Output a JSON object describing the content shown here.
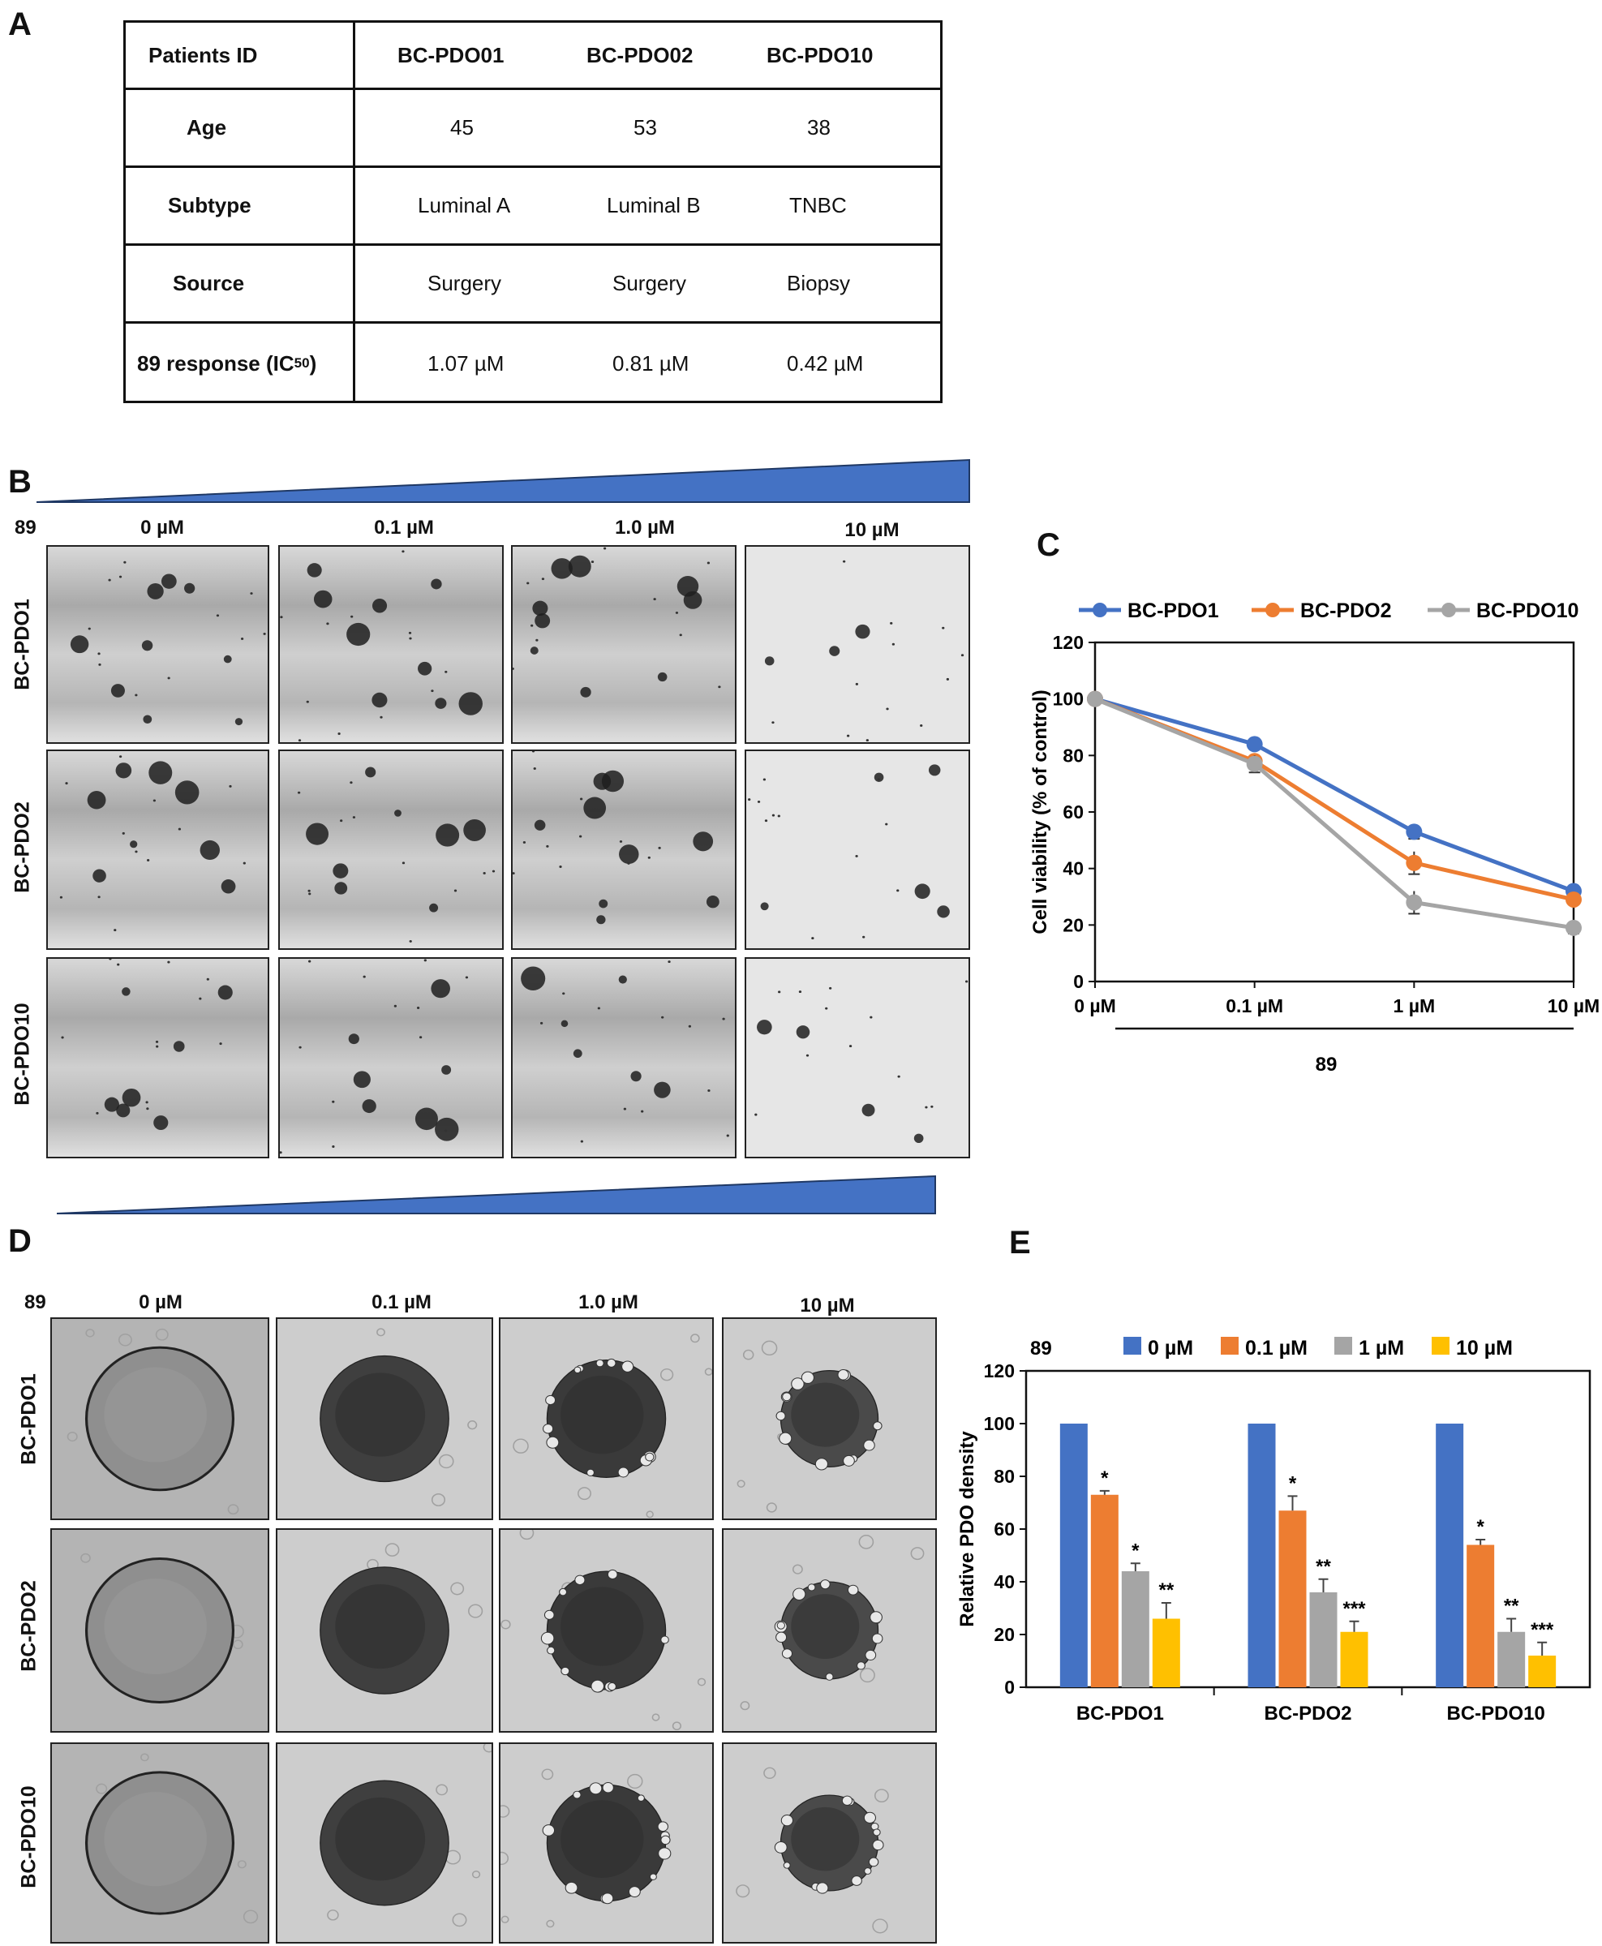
{
  "panels": {
    "a": "A",
    "b": "B",
    "c": "C",
    "d": "D",
    "e": "E"
  },
  "table": {
    "header": {
      "label": "Patients ID",
      "cols": [
        "BC-PDO01",
        "BC-PDO02",
        "BC-PDO10"
      ]
    },
    "rows": [
      {
        "label": "Age",
        "values": [
          "45",
          "53",
          "38"
        ]
      },
      {
        "label": "Subtype",
        "values": [
          "Luminal A",
          "Luminal B",
          "TNBC"
        ]
      },
      {
        "label": "Source",
        "values": [
          "Surgery",
          "Surgery",
          "Biopsy"
        ]
      },
      {
        "label_main": "89 response (IC",
        "label_sub": "50",
        "label_end": ")",
        "values": [
          "1.07 µM",
          "0.81 µM",
          "0.42 µM"
        ]
      }
    ]
  },
  "panel_b": {
    "compound": "89",
    "concentrations": [
      "0 µM",
      "0.1 µM",
      "1.0 µM",
      "10 µM"
    ],
    "rows": [
      "BC-PDO1",
      "BC-PDO2",
      "BC-PDO10"
    ]
  },
  "panel_d": {
    "compound": "89",
    "concentrations": [
      "0 µM",
      "0.1 µM",
      "1.0 µM",
      "10 µM"
    ],
    "rows": [
      "BC-PDO1",
      "BC-PDO2",
      "BC-PDO10"
    ]
  },
  "colors": {
    "blue": "#4472C4",
    "orange": "#ED7D31",
    "gray": "#A5A5A5",
    "yellow": "#FFC000",
    "wedge": "#4472C4"
  },
  "chart_data": [
    {
      "type": "line",
      "panel": "C",
      "categories": [
        "0 µM",
        "0.1 µM",
        "1 µM",
        "10 µM"
      ],
      "series": [
        {
          "name": "BC-PDO1",
          "values": [
            100,
            84,
            53,
            32
          ],
          "errors": [
            0,
            1.5,
            2.5,
            1.5
          ]
        },
        {
          "name": "BC-PDO2",
          "values": [
            100,
            78,
            42,
            29
          ],
          "errors": [
            0,
            1.5,
            4,
            1.5
          ]
        },
        {
          "name": "BC-PDO10",
          "values": [
            100,
            77,
            28,
            19
          ],
          "errors": [
            0,
            3,
            4,
            2
          ]
        }
      ],
      "ylabel": "Cell viability (% of control)",
      "xlabel": "89",
      "ylim": [
        0,
        120
      ],
      "yticks": [
        0,
        20,
        40,
        60,
        80,
        100,
        120
      ],
      "legend": "top"
    },
    {
      "type": "bar",
      "panel": "E",
      "legend_prefix": "89",
      "categories": [
        "BC-PDO1",
        "BC-PDO2",
        "BC-PDO10"
      ],
      "series": [
        {
          "name": "0 µM",
          "values": [
            100,
            100,
            100
          ],
          "errors": [
            0,
            0,
            0
          ],
          "sig": [
            "",
            "",
            ""
          ]
        },
        {
          "name": "0.1 µM",
          "values": [
            73,
            67,
            54
          ],
          "errors": [
            1.5,
            5.5,
            2
          ],
          "sig": [
            "*",
            "*",
            "*"
          ]
        },
        {
          "name": "1 µM",
          "values": [
            44,
            36,
            21
          ],
          "errors": [
            3,
            5,
            5
          ],
          "sig": [
            "*",
            "**",
            "**"
          ]
        },
        {
          "name": "10 µM",
          "values": [
            26,
            21,
            12
          ],
          "errors": [
            6,
            4,
            5
          ],
          "sig": [
            "**",
            "***",
            "***"
          ]
        }
      ],
      "ylabel": "Relative PDO density",
      "ylim": [
        0,
        120
      ],
      "yticks": [
        0,
        20,
        40,
        60,
        80,
        100,
        120
      ],
      "legend": "top"
    }
  ]
}
